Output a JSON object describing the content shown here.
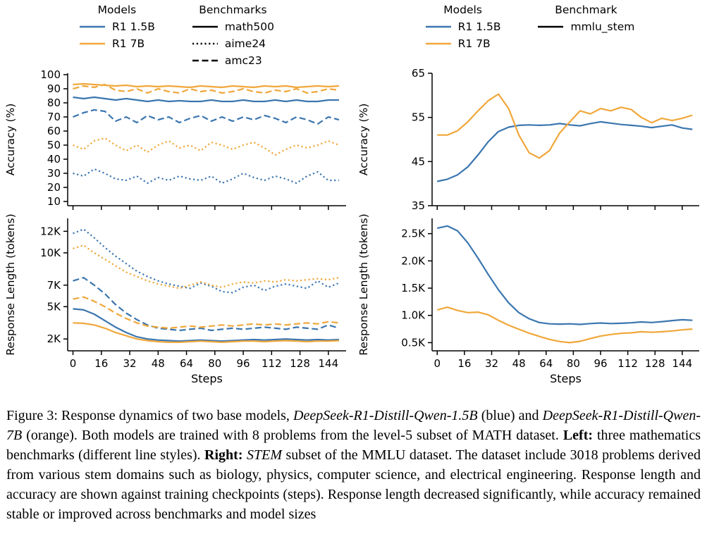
{
  "colors": {
    "blue": "#3b76af",
    "orange": "#f0a73a",
    "black": "#000000"
  },
  "legends": {
    "left": {
      "groups": [
        {
          "title": "Models",
          "items": [
            {
              "label": "R1 1.5B",
              "color": "blue",
              "dash": "solid"
            },
            {
              "label": "R1 7B",
              "color": "orange",
              "dash": "solid"
            }
          ]
        },
        {
          "title": "Benchmarks",
          "items": [
            {
              "label": "math500",
              "color": "black",
              "dash": "solid"
            },
            {
              "label": "aime24",
              "color": "black",
              "dash": "dotted"
            },
            {
              "label": "amc23",
              "color": "black",
              "dash": "dashed"
            }
          ]
        }
      ]
    },
    "right": {
      "groups": [
        {
          "title": "Models",
          "items": [
            {
              "label": "R1 1.5B",
              "color": "blue",
              "dash": "solid"
            },
            {
              "label": "R1 7B",
              "color": "orange",
              "dash": "solid"
            }
          ]
        },
        {
          "title": "Benchmark",
          "items": [
            {
              "label": "mmlu_stem",
              "color": "black",
              "dash": "solid"
            }
          ]
        }
      ]
    }
  },
  "chart_data": [
    {
      "id": "left-top-accuracy",
      "type": "line",
      "ylabel": "Accuracy (%)",
      "xlabel": "",
      "xlim": [
        -3,
        154
      ],
      "ylim": [
        7,
        101
      ],
      "xticks": [
        0,
        16,
        32,
        48,
        64,
        80,
        96,
        112,
        128,
        144
      ],
      "show_xtick_labels": false,
      "yticks": [
        10,
        20,
        30,
        40,
        50,
        60,
        70,
        80,
        90,
        100
      ],
      "ytick_labels": [
        "10",
        "20",
        "30",
        "40",
        "50",
        "60",
        "70",
        "80",
        "90",
        "100"
      ],
      "x": [
        0,
        6,
        12,
        18,
        24,
        30,
        36,
        42,
        48,
        54,
        60,
        66,
        72,
        78,
        84,
        90,
        96,
        102,
        108,
        114,
        120,
        126,
        132,
        138,
        144,
        150
      ],
      "series": [
        {
          "name": "R1 7B math500",
          "color": "orange",
          "dash": "solid",
          "values": [
            93,
            93.5,
            93,
            92.5,
            92,
            92.5,
            91.5,
            92,
            91.5,
            92,
            91.5,
            91,
            92,
            91.5,
            91,
            92,
            91.5,
            91,
            92,
            91.5,
            92,
            91,
            91.5,
            92,
            91.5,
            92
          ]
        },
        {
          "name": "R1 7B amc23",
          "color": "orange",
          "dash": "dashed",
          "values": [
            90,
            92,
            91,
            93,
            89,
            88,
            90,
            87,
            90,
            88,
            87,
            90,
            88,
            89,
            87,
            88,
            90,
            88,
            87,
            89,
            88,
            90,
            87,
            88,
            90,
            89
          ]
        },
        {
          "name": "R1 1.5B math500",
          "color": "blue",
          "dash": "solid",
          "values": [
            84,
            83,
            84,
            83,
            82,
            83,
            82,
            81,
            82,
            81,
            81.5,
            81,
            81,
            82,
            81,
            81,
            82,
            81,
            81,
            82,
            81,
            82,
            81,
            81,
            82,
            82
          ]
        },
        {
          "name": "R1 1.5B amc23",
          "color": "blue",
          "dash": "dashed",
          "values": [
            70,
            73,
            75,
            74,
            67,
            70,
            66,
            71,
            68,
            70,
            66,
            69,
            71,
            67,
            70,
            67,
            70,
            68,
            71,
            69,
            66,
            70,
            68,
            65,
            70,
            68
          ]
        },
        {
          "name": "R1 7B aime24",
          "color": "orange",
          "dash": "dotted",
          "values": [
            50,
            47,
            53,
            55,
            50,
            46,
            50,
            45,
            50,
            53,
            48,
            50,
            46,
            52,
            50,
            47,
            50,
            52,
            48,
            43,
            47,
            50,
            48,
            50,
            53,
            50
          ]
        },
        {
          "name": "R1 1.5B aime24",
          "color": "blue",
          "dash": "dotted",
          "values": [
            30,
            28,
            33,
            30,
            26,
            25,
            28,
            23,
            27,
            25,
            28,
            26,
            25,
            28,
            23,
            26,
            30,
            27,
            25,
            28,
            26,
            23,
            28,
            31,
            25,
            25
          ]
        }
      ]
    },
    {
      "id": "left-bottom-response-length",
      "type": "line",
      "ylabel": "Response Length (tokens)",
      "xlabel": "Steps",
      "xlim": [
        -3,
        154
      ],
      "ylim": [
        900,
        13200
      ],
      "xticks": [
        0,
        16,
        32,
        48,
        64,
        80,
        96,
        112,
        128,
        144
      ],
      "show_xtick_labels": true,
      "yticks": [
        2000,
        5000,
        7000,
        10000,
        12000
      ],
      "ytick_labels": [
        "2K",
        "5K",
        "7K",
        "10K",
        "12K"
      ],
      "x": [
        0,
        6,
        12,
        18,
        24,
        30,
        36,
        42,
        48,
        54,
        60,
        66,
        72,
        78,
        84,
        90,
        96,
        102,
        108,
        114,
        120,
        126,
        132,
        138,
        144,
        150
      ],
      "series": [
        {
          "name": "R1 1.5B aime24",
          "color": "blue",
          "dash": "dotted",
          "values": [
            11800,
            12200,
            11400,
            10500,
            9700,
            9000,
            8300,
            7800,
            7400,
            7100,
            6900,
            6700,
            7200,
            6900,
            6400,
            6300,
            6800,
            7000,
            6500,
            6900,
            7100,
            6900,
            6700,
            7400,
            6800,
            7200
          ]
        },
        {
          "name": "R1 7B aime24",
          "color": "orange",
          "dash": "dotted",
          "values": [
            10400,
            10700,
            10000,
            9400,
            8800,
            8200,
            7800,
            7400,
            7100,
            6900,
            6700,
            7000,
            7300,
            7000,
            6800,
            7100,
            7300,
            7200,
            7400,
            7300,
            7500,
            7400,
            7500,
            7600,
            7500,
            7700
          ]
        },
        {
          "name": "R1 1.5B amc23",
          "color": "blue",
          "dash": "dashed",
          "values": [
            7400,
            7700,
            7000,
            6200,
            5200,
            4400,
            3800,
            3300,
            3000,
            2900,
            2800,
            2900,
            3000,
            2800,
            2900,
            3000,
            2900,
            3000,
            3100,
            3000,
            2900,
            3100,
            3000,
            2900,
            3300,
            3000
          ]
        },
        {
          "name": "R1 7B amc23",
          "color": "orange",
          "dash": "dashed",
          "values": [
            5700,
            5900,
            5500,
            5000,
            4400,
            3900,
            3500,
            3200,
            3100,
            3000,
            3100,
            3200,
            3100,
            3200,
            3300,
            3200,
            3300,
            3400,
            3300,
            3400,
            3300,
            3400,
            3500,
            3400,
            3600,
            3500
          ]
        },
        {
          "name": "R1 1.5B math500",
          "color": "blue",
          "dash": "solid",
          "values": [
            4800,
            4700,
            4300,
            3700,
            3100,
            2600,
            2200,
            2000,
            1900,
            1850,
            1800,
            1850,
            1900,
            1850,
            1800,
            1850,
            1900,
            1950,
            1900,
            1950,
            2000,
            1950,
            1900,
            1950,
            1900,
            1950
          ]
        },
        {
          "name": "R1 7B math500",
          "color": "orange",
          "dash": "solid",
          "values": [
            3500,
            3450,
            3300,
            3000,
            2600,
            2300,
            2000,
            1850,
            1750,
            1700,
            1700,
            1750,
            1800,
            1750,
            1700,
            1750,
            1800,
            1800,
            1750,
            1800,
            1850,
            1800,
            1750,
            1800,
            1800,
            1850
          ]
        }
      ]
    },
    {
      "id": "right-top-accuracy-mmlu",
      "type": "line",
      "ylabel": "Accuracy (%)",
      "xlabel": "",
      "xlim": [
        -3,
        154
      ],
      "ylim": [
        35,
        65
      ],
      "xticks": [
        0,
        16,
        32,
        48,
        64,
        80,
        96,
        112,
        128,
        144
      ],
      "show_xtick_labels": false,
      "yticks": [
        35,
        45,
        55,
        65
      ],
      "ytick_labels": [
        "35",
        "45",
        "55",
        "65"
      ],
      "x": [
        0,
        6,
        12,
        18,
        24,
        30,
        36,
        42,
        48,
        54,
        60,
        66,
        72,
        78,
        84,
        90,
        96,
        102,
        108,
        114,
        120,
        126,
        132,
        138,
        144,
        150
      ],
      "series": [
        {
          "name": "R1 1.5B mmlu_stem",
          "color": "blue",
          "dash": "solid",
          "values": [
            40.5,
            41,
            42,
            43.8,
            46.5,
            49.5,
            51.8,
            52.8,
            53.2,
            53.3,
            53.2,
            53.3,
            53.6,
            53.3,
            53.1,
            53.6,
            54,
            53.7,
            53.4,
            53.2,
            53,
            52.7,
            53,
            53.3,
            52.6,
            52.3
          ]
        },
        {
          "name": "R1 7B mmlu_stem",
          "color": "orange",
          "dash": "solid",
          "values": [
            51,
            51,
            52,
            54,
            56.5,
            58.8,
            60.3,
            57,
            51,
            47,
            45.8,
            47.5,
            51.5,
            54,
            56.5,
            55.8,
            57,
            56.5,
            57.3,
            56.8,
            55,
            53.8,
            54.8,
            54.3,
            54.8,
            55.5
          ]
        }
      ]
    },
    {
      "id": "right-bottom-response-length-mmlu",
      "type": "line",
      "ylabel": "Response Length (tokens)",
      "xlabel": "Steps",
      "xlim": [
        -3,
        154
      ],
      "ylim": [
        350,
        2780
      ],
      "xticks": [
        0,
        16,
        32,
        48,
        64,
        80,
        96,
        112,
        128,
        144
      ],
      "show_xtick_labels": true,
      "yticks": [
        500,
        1000,
        1500,
        2000,
        2500
      ],
      "ytick_labels": [
        "0.5K",
        "1.0K",
        "1.5K",
        "2.0K",
        "2.5K"
      ],
      "x": [
        0,
        6,
        12,
        18,
        24,
        30,
        36,
        42,
        48,
        54,
        60,
        66,
        72,
        78,
        84,
        90,
        96,
        102,
        108,
        114,
        120,
        126,
        132,
        138,
        144,
        150
      ],
      "series": [
        {
          "name": "R1 1.5B mmlu_stem",
          "color": "blue",
          "dash": "solid",
          "values": [
            2600,
            2640,
            2550,
            2330,
            2050,
            1750,
            1470,
            1230,
            1050,
            940,
            870,
            845,
            840,
            845,
            835,
            850,
            860,
            850,
            855,
            865,
            880,
            870,
            885,
            905,
            920,
            910
          ]
        },
        {
          "name": "R1 7B mmlu_stem",
          "color": "orange",
          "dash": "solid",
          "values": [
            1100,
            1150,
            1090,
            1050,
            1060,
            1010,
            910,
            820,
            745,
            675,
            615,
            560,
            520,
            500,
            525,
            575,
            620,
            650,
            670,
            680,
            700,
            690,
            700,
            715,
            735,
            750
          ]
        }
      ]
    }
  ],
  "figure": {
    "caption_segments": [
      {
        "text": "Figure 3: Response dynamics of two base models, ",
        "style": "normal"
      },
      {
        "text": "DeepSeek-R1-Distill-Qwen-1.5B",
        "style": "italic"
      },
      {
        "text": " (blue) and ",
        "style": "normal"
      },
      {
        "text": "DeepSeek-R1-Distill-Qwen-7B",
        "style": "italic"
      },
      {
        "text": " (orange). Both models are trained with 8 problems from the level-5 subset of MATH dataset. ",
        "style": "normal"
      },
      {
        "text": "Left:",
        "style": "bold"
      },
      {
        "text": " three mathematics benchmarks (different line styles). ",
        "style": "normal"
      },
      {
        "text": "Right:",
        "style": "bold"
      },
      {
        "text": " ",
        "style": "normal"
      },
      {
        "text": "STEM",
        "style": "italic"
      },
      {
        "text": " subset of the MMLU dataset. The dataset include 3018 problems derived from various stem domains such as biology, physics, computer science, and electrical engineering. Response length and accuracy are shown against training checkpoints (steps). Response length decreased significantly, while accuracy remained stable or improved across benchmarks and model sizes",
        "style": "normal"
      }
    ]
  }
}
